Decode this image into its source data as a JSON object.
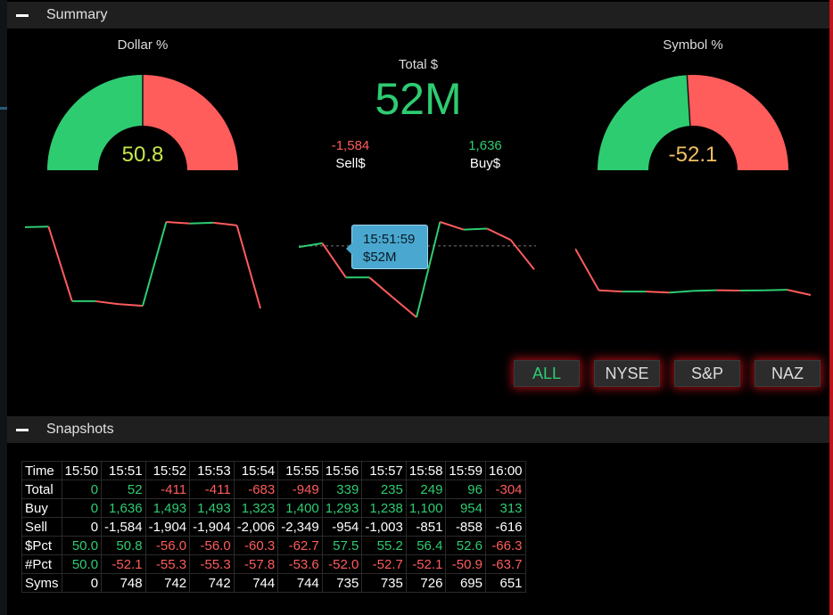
{
  "summary": {
    "title": "Summary",
    "dollar_pct": {
      "label": "Dollar %",
      "value": "50.8",
      "green_fraction": 0.5,
      "value_color": "#c6e84a"
    },
    "symbol_pct": {
      "label": "Symbol %",
      "value": "-52.1",
      "green_fraction": 0.48,
      "value_color": "#f0c060"
    },
    "total": {
      "label": "Total $",
      "value": "52M"
    },
    "sell": {
      "value": "-1,584",
      "label": "Sell$"
    },
    "buy": {
      "value": "1,636",
      "label": "Buy$"
    },
    "tooltip": {
      "time": "15:51:59",
      "value": "$52M"
    },
    "colors": {
      "green": "#2ecc71",
      "red": "#ff5c5c"
    },
    "exchange_buttons": [
      "ALL",
      "NYSE",
      "S&P",
      "NAZ"
    ],
    "active_exchange": "ALL"
  },
  "sparklines": [
    {
      "values": [
        50.0,
        50.8,
        -56.0,
        -56.0,
        -60.3,
        -62.7,
        57.5,
        55.2,
        56.4,
        52.6,
        -66.3
      ]
    },
    {
      "values": [
        0,
        52,
        -411,
        -411,
        -683,
        -949,
        339,
        235,
        249,
        96,
        -304
      ]
    },
    {
      "values": [
        50.0,
        -52.1,
        -55.3,
        -55.3,
        -57.8,
        -53.6,
        -52.0,
        -52.7,
        -52.1,
        -50.9,
        -63.7
      ]
    }
  ],
  "snapshots": {
    "title": "Snapshots",
    "times": [
      "15:50",
      "15:51",
      "15:52",
      "15:53",
      "15:54",
      "15:55",
      "15:56",
      "15:57",
      "15:58",
      "15:59",
      "16:00"
    ],
    "rows": [
      {
        "label": "Time",
        "cells": []
      },
      {
        "label": "Total",
        "cells": [
          "0",
          "52",
          "-411",
          "-411",
          "-683",
          "-949",
          "339",
          "235",
          "249",
          "96",
          "-304"
        ]
      },
      {
        "label": "Buy",
        "cells": [
          "0",
          "1,636",
          "1,493",
          "1,493",
          "1,323",
          "1,400",
          "1,293",
          "1,238",
          "1,100",
          "954",
          "313"
        ]
      },
      {
        "label": "Sell",
        "cells": [
          "0",
          "-1,584",
          "-1,904",
          "-1,904",
          "-2,006",
          "-2,349",
          "-954",
          "-1,003",
          "-851",
          "-858",
          "-616"
        ]
      },
      {
        "label": "$Pct",
        "cells": [
          "50.0",
          "50.8",
          "-56.0",
          "-56.0",
          "-60.3",
          "-62.7",
          "57.5",
          "55.2",
          "56.4",
          "52.6",
          "-66.3"
        ]
      },
      {
        "label": "#Pct",
        "cells": [
          "50.0",
          "-52.1",
          "-55.3",
          "-55.3",
          "-57.8",
          "-53.6",
          "-52.0",
          "-52.7",
          "-52.1",
          "-50.9",
          "-63.7"
        ]
      },
      {
        "label": "Syms",
        "cells": [
          "0",
          "748",
          "742",
          "742",
          "744",
          "744",
          "735",
          "735",
          "726",
          "695",
          "651"
        ]
      }
    ],
    "row_colors": {
      "Total": [
        "pos",
        "pos",
        "neg",
        "neg",
        "neg",
        "neg",
        "pos",
        "pos",
        "pos",
        "pos",
        "neg"
      ],
      "Buy": [
        "pos",
        "pos",
        "pos",
        "pos",
        "pos",
        "pos",
        "pos",
        "pos",
        "pos",
        "pos",
        "pos"
      ],
      "Sell": [
        "neu",
        "neu",
        "neu",
        "neu",
        "neu",
        "neu",
        "neu",
        "neu",
        "neu",
        "neu",
        "neu"
      ],
      "$Pct": [
        "pos",
        "pos",
        "neg",
        "neg",
        "neg",
        "neg",
        "pos",
        "pos",
        "pos",
        "pos",
        "neg"
      ],
      "#Pct": [
        "pos",
        "neg",
        "neg",
        "neg",
        "neg",
        "neg",
        "neg",
        "neg",
        "neg",
        "neg",
        "neg"
      ],
      "Syms": [
        "neu",
        "neu",
        "neu",
        "neu",
        "neu",
        "neu",
        "neu",
        "neu",
        "neu",
        "neu",
        "neu"
      ]
    }
  }
}
